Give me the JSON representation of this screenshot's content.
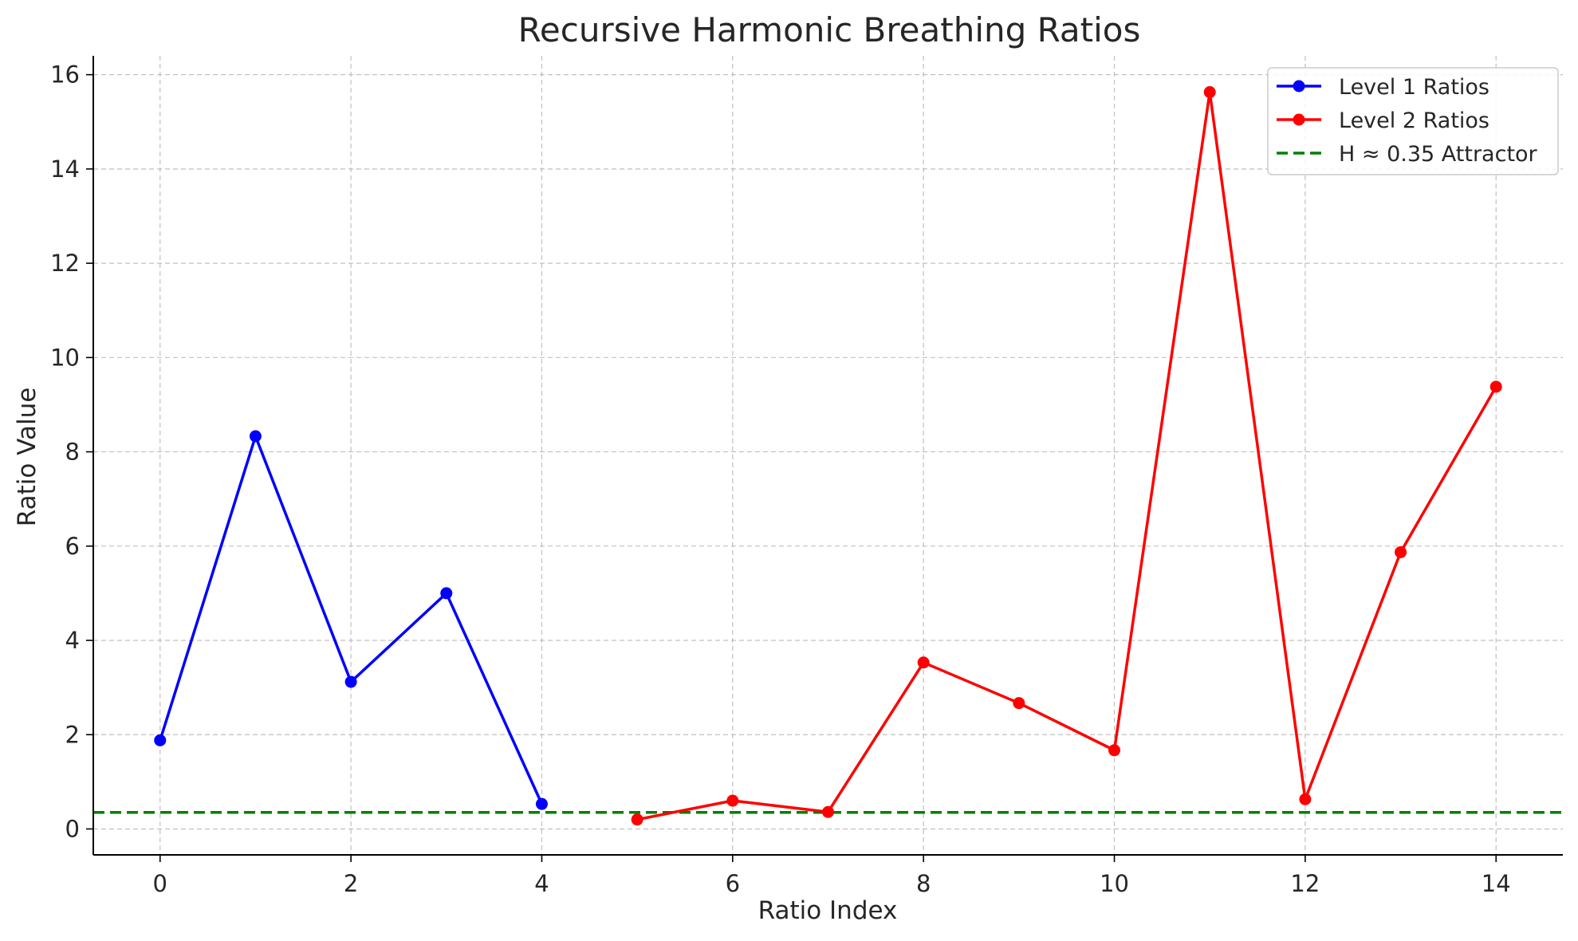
{
  "chart_data": {
    "type": "line",
    "title": "Recursive Harmonic Breathing Ratios",
    "xlabel": "Ratio Index",
    "ylabel": "Ratio Value",
    "xlim": [
      -0.7,
      14.7
    ],
    "ylim": [
      -0.55,
      16.4
    ],
    "x_ticks": [
      0,
      2,
      4,
      6,
      8,
      10,
      12,
      14
    ],
    "y_ticks": [
      0,
      2,
      4,
      6,
      8,
      10,
      12,
      14,
      16
    ],
    "grid": true,
    "legend_position": "top-right",
    "series": [
      {
        "name": "Level 1 Ratios",
        "color": "#0000ff",
        "marker": "circle",
        "x": [
          0,
          1,
          2,
          3,
          4
        ],
        "values": [
          1.88,
          8.33,
          3.12,
          5.0,
          0.53
        ]
      },
      {
        "name": "Level 2 Ratios",
        "color": "#ff0000",
        "marker": "circle",
        "x": [
          5,
          6,
          7,
          8,
          9,
          10,
          11,
          12,
          13,
          14
        ],
        "values": [
          0.2,
          0.6,
          0.36,
          3.53,
          2.67,
          1.67,
          15.63,
          0.63,
          5.87,
          9.38
        ]
      }
    ],
    "reference_lines": [
      {
        "name": "H ≈ 0.35 Attractor",
        "y": 0.35,
        "color": "#008000",
        "style": "dashed"
      }
    ]
  }
}
